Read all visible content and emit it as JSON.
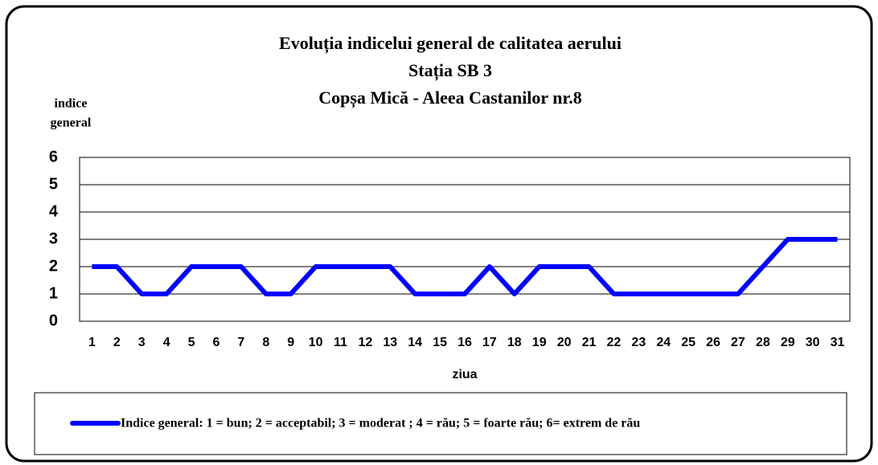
{
  "chart_data": {
    "type": "line",
    "title": [
      "Evoluția indicelui  general de calitatea aerului",
      "Stația SB 3",
      "Copșa Mică - Aleea Castanilor nr.8"
    ],
    "ylabel": [
      "indice",
      "general"
    ],
    "xlabel": "ziua",
    "categories": [
      "1",
      "2",
      "3",
      "4",
      "5",
      "6",
      "7",
      "8",
      "9",
      "10",
      "11",
      "12",
      "13",
      "14",
      "15",
      "16",
      "17",
      "18",
      "19",
      "20",
      "21",
      "22",
      "23",
      "24",
      "25",
      "26",
      "27",
      "28",
      "29",
      "30",
      "31"
    ],
    "series": [
      {
        "name": "Indice general: 1 = bun; 2 = acceptabil; 3 = moderat ; 4 = rău; 5 = foarte rău; 6= extrem de rău",
        "color": "#0000ff",
        "values": [
          2,
          2,
          1,
          1,
          2,
          2,
          2,
          1,
          1,
          2,
          2,
          2,
          2,
          1,
          1,
          1,
          2,
          1,
          2,
          2,
          2,
          1,
          1,
          1,
          1,
          1,
          1,
          2,
          3,
          3,
          3
        ]
      }
    ],
    "ylim": [
      0,
      6
    ],
    "yticks": [
      0,
      1,
      2,
      3,
      4,
      5,
      6
    ],
    "grid": true,
    "legend": "bottom"
  }
}
